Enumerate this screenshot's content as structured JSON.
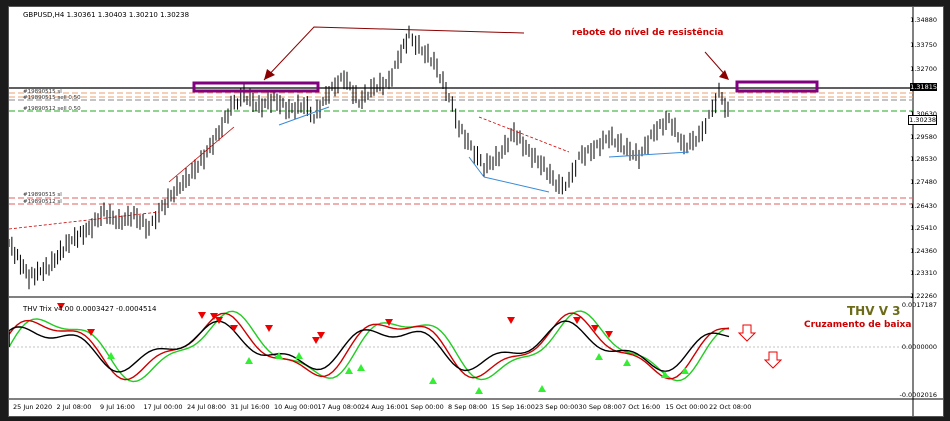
{
  "window": {
    "symbol_info": "GBPUSD,H4  1.30361 1.30403 1.30210 1.30238",
    "indicator_info": "THV Trix v4.00  0.0003427 -0.0004514"
  },
  "price_axis": {
    "labels": [
      "1.34880",
      "1.33750",
      "1.32700",
      "1.31815",
      "1.30630",
      "1.30238",
      "1.29580",
      "1.28530",
      "1.27480",
      "1.26430",
      "1.25410",
      "1.24360",
      "1.23310",
      "1.22260"
    ],
    "current": "1.30238",
    "highlight": "1.31815"
  },
  "indicator_axis": {
    "labels": [
      "0.0017187",
      "0.0000000",
      "-0.0002016"
    ]
  },
  "time_axis": {
    "labels": [
      "25 Jun 2020",
      "2 Jul 08:00",
      "9 Jul 16:00",
      "17 Jul 00:00",
      "24 Jul 08:00",
      "31 Jul 16:00",
      "10 Aug 00:00",
      "17 Aug 08:00",
      "24 Aug 16:00",
      "1 Sep 00:00",
      "8 Sep 08:00",
      "15 Sep 16:00",
      "23 Sep 00:00",
      "30 Sep 08:00",
      "7 Oct 16:00",
      "15 Oct 00:00",
      "22 Oct 08:00"
    ]
  },
  "order_labels": {
    "upper1": "#19890515 sl",
    "upper2": "#19890515 sell 0.50",
    "upper3": "#19890512 sell 0.50",
    "lower1": "#19890515 sl",
    "lower2": "#19890512 sl"
  },
  "annotations": {
    "resistance_text": "rebote do nível de resistência",
    "thv_title": "THV V 3",
    "thv_sub": "Cruzamento de baixa"
  },
  "colors": {
    "red": "#cc0000",
    "purple": "#800080",
    "green": "#22cc22",
    "thv_title": "#6b6b1a"
  }
}
